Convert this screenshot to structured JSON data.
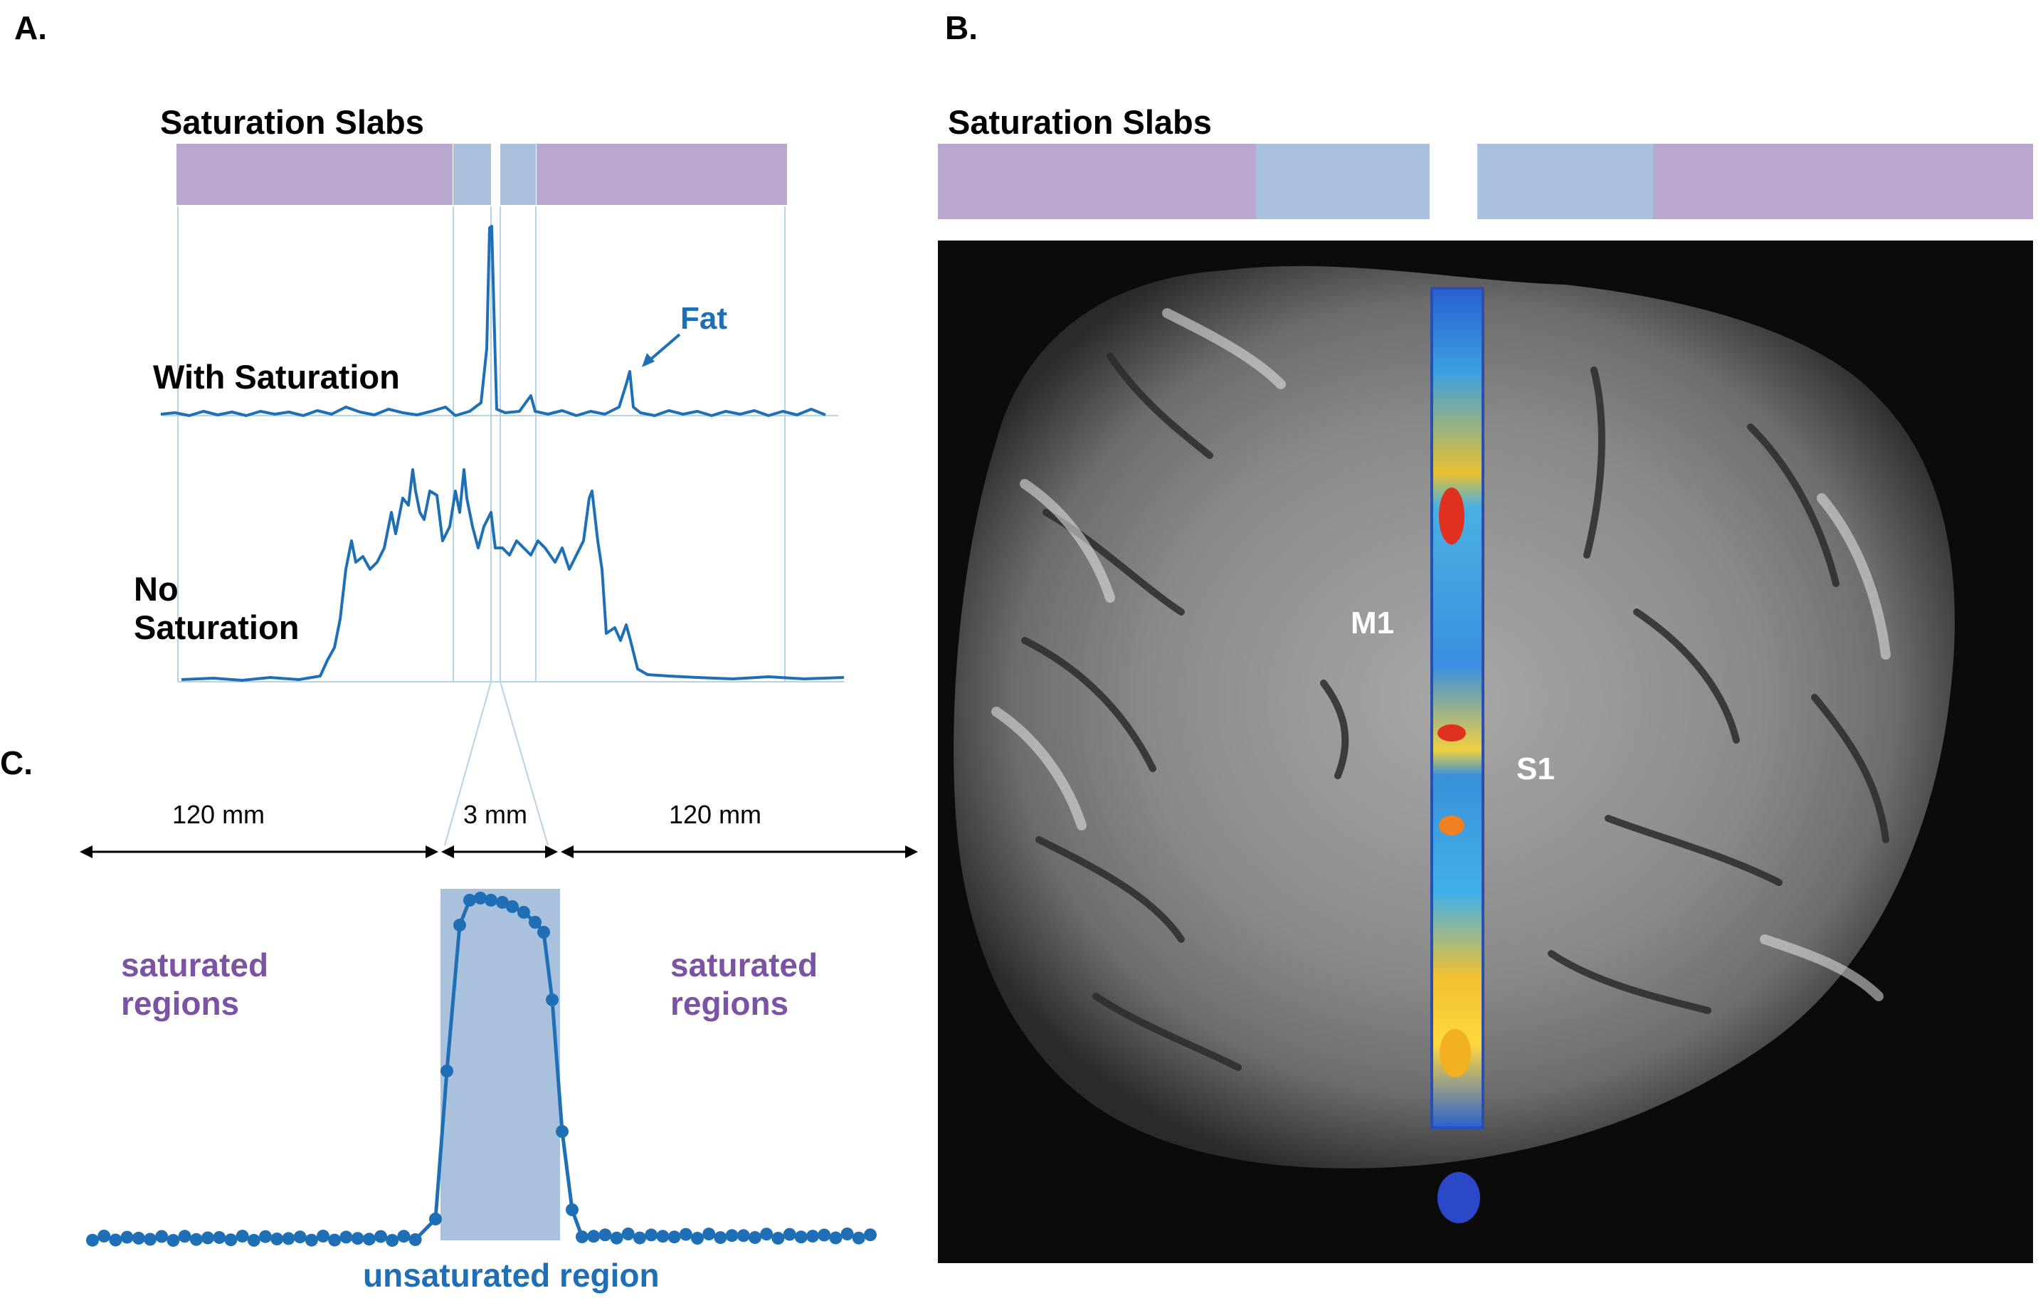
{
  "panels": {
    "a": {
      "letter": "A.",
      "slab_title": "Saturation Slabs",
      "labels": {
        "with_saturation": "With Saturation",
        "no_saturation_line1": "No",
        "no_saturation_line2": "Saturation",
        "fat": "Fat"
      }
    },
    "b": {
      "letter": "B.",
      "slab_title": "Saturation Slabs",
      "labels": {
        "m1": "M1",
        "s1": "S1"
      }
    },
    "c": {
      "letter": "C.",
      "dimensions": {
        "left": "120 mm",
        "center": "3 mm",
        "right": "120 mm"
      },
      "labels": {
        "saturated_left_line1": "saturated",
        "saturated_left_line2": "regions",
        "saturated_right_line1": "saturated",
        "saturated_right_line2": "regions",
        "unsaturated": "unsaturated region"
      }
    }
  },
  "colors": {
    "saturated_slab": "#b9a7d0",
    "unsaturated_slab": "#a9c1dc",
    "trace": "#1e6fb5",
    "guide_line": "#b8d2e6",
    "saturated_text": "#7b52a4",
    "brain_background": "#0b0b0b"
  }
}
